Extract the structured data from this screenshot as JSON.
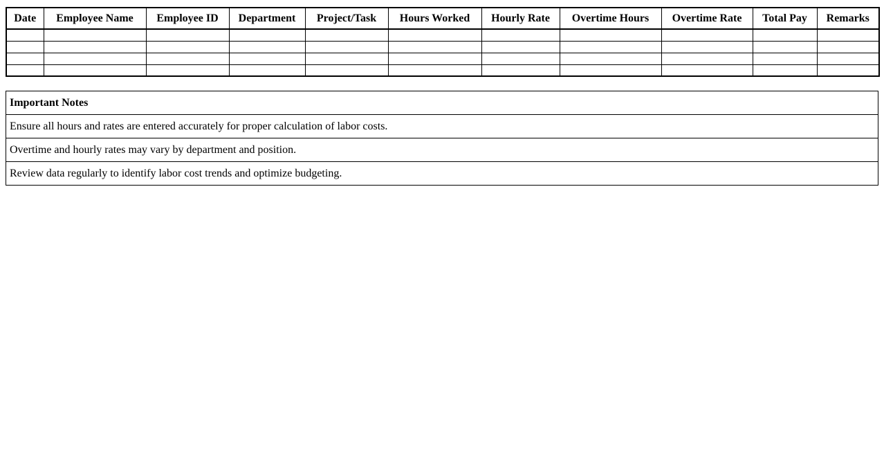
{
  "page": {
    "background_color": "#ffffff",
    "border_color": "#000000",
    "text_color": "#000000"
  },
  "timesheet_table": {
    "headers": [
      "Date",
      "Employee Name",
      "Employee ID",
      "Department",
      "Project/Task",
      "Hours Worked",
      "Hourly Rate",
      "Overtime Hours",
      "Overtime Rate",
      "Total Pay",
      "Remarks"
    ],
    "empty_row_count": 4,
    "empty_cell_value": ""
  },
  "notes": {
    "title": "Important Notes",
    "items": [
      "Ensure all hours and rates are entered accurately for proper calculation of labor costs.",
      "Overtime and hourly rates may vary by department and position.",
      "Review data regularly to identify labor cost trends and optimize budgeting."
    ]
  }
}
